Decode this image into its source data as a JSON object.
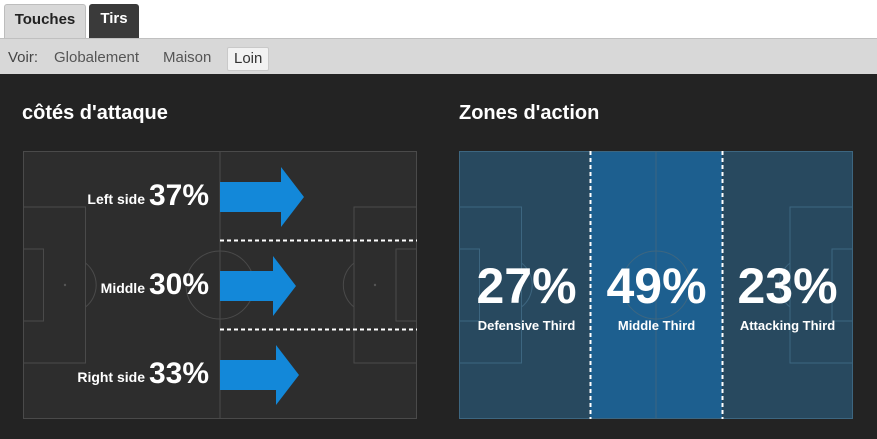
{
  "tabs": [
    {
      "label": "Touches",
      "active": true
    },
    {
      "label": "Tirs",
      "active": false
    }
  ],
  "filter": {
    "label": "Voir:",
    "options": [
      "Globalement",
      "Maison",
      "Loin"
    ],
    "selected": "Loin"
  },
  "attack_sides": {
    "title": "côtés d'attaque",
    "rows": [
      {
        "label": "Left side",
        "value": "37%"
      },
      {
        "label": "Middle",
        "value": "30%"
      },
      {
        "label": "Right side",
        "value": "33%"
      }
    ]
  },
  "action_zones": {
    "title": "Zones d'action",
    "zones": [
      {
        "label": "Defensive Third",
        "value": "27%"
      },
      {
        "label": "Middle Third",
        "value": "49%"
      },
      {
        "label": "Attacking Third",
        "value": "23%"
      }
    ]
  },
  "colors": {
    "arrow": "#1388d9",
    "panel_bg": "#232323",
    "pitch_dark": "#2d2d2d",
    "zone_dark": "#28495f",
    "zone_highlight": "#1d5f8f"
  }
}
